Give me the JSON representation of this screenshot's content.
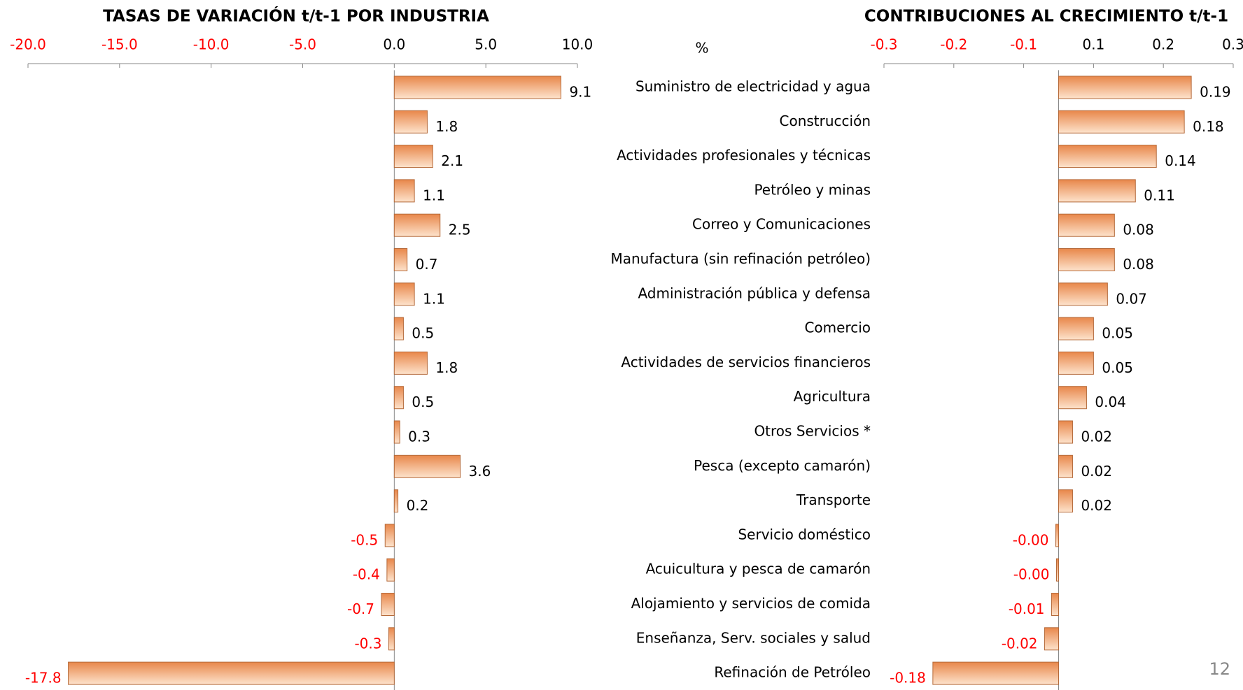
{
  "chart_data": [
    {
      "type": "hbar",
      "title": "TASAS DE VARIACIÓN t/t-1 POR INDUSTRIA",
      "x_label": "%",
      "categories": [
        "Suministro de electricidad y agua",
        "Construcción",
        "Actividades profesionales y técnicas",
        "Petróleo y minas",
        "Correo y Comunicaciones",
        "Manufactura (sin refinación petróleo)",
        "Administración pública y defensa",
        "Comercio",
        "Actividades de servicios financieros",
        "Agricultura",
        "Otros Servicios *",
        "Pesca (excepto camarón)",
        "Transporte",
        "Servicio doméstico",
        "Acuicultura y pesca de camarón",
        "Alojamiento y servicios de comida",
        "Enseñanza, Serv. sociales y salud",
        "Refinación de Petróleo"
      ],
      "values": [
        9.1,
        1.8,
        2.1,
        1.1,
        2.5,
        0.7,
        1.1,
        0.5,
        1.8,
        0.5,
        0.3,
        3.6,
        0.2,
        -0.5,
        -0.4,
        -0.7,
        -0.3,
        -17.8
      ],
      "color": "#e8874a",
      "negative_color": "#ff0000",
      "xlim": [
        -20,
        10
      ],
      "xticks": [
        {
          "value": -20,
          "label": "-20.0"
        },
        {
          "value": -15,
          "label": "-15.0"
        },
        {
          "value": -10,
          "label": "-10.0"
        },
        {
          "value": -5,
          "label": "-5.0"
        },
        {
          "value": 0,
          "label": "0.0"
        },
        {
          "value": 5,
          "label": "5.0"
        },
        {
          "value": 10,
          "label": "10.0"
        }
      ]
    },
    {
      "type": "hbar",
      "title": "CONTRIBUCIONES AL CRECIMIENTO t/t-1",
      "values": [
        0.19,
        0.18,
        0.14,
        0.11,
        0.08,
        0.08,
        0.07,
        0.05,
        0.05,
        0.04,
        0.02,
        0.02,
        0.02,
        -0.004,
        -0.003,
        -0.01,
        -0.02,
        -0.18
      ],
      "value_labels": [
        "0.19",
        "0.18",
        "0.14",
        "0.11",
        "0.08",
        "0.08",
        "0.07",
        "0.05",
        "0.05",
        "0.04",
        "0.02",
        "0.02",
        "0.02",
        "-0.00",
        "-0.00",
        "-0.01",
        "-0.02",
        "-0.18"
      ],
      "color": "#e8874a",
      "negative_color": "#ff0000",
      "xlim": [
        -0.25,
        0.25
      ],
      "xticks": [
        {
          "value": -0.25,
          "label": "-0.3"
        },
        {
          "value": -0.15,
          "label": "-0.2"
        },
        {
          "value": -0.05,
          "label": "-0.1"
        },
        {
          "value": 0.05,
          "label": "0.1"
        },
        {
          "value": 0.15,
          "label": "0.2"
        },
        {
          "value": 0.25,
          "label": "0.3"
        }
      ]
    }
  ],
  "slide": {
    "page_number": "12"
  }
}
